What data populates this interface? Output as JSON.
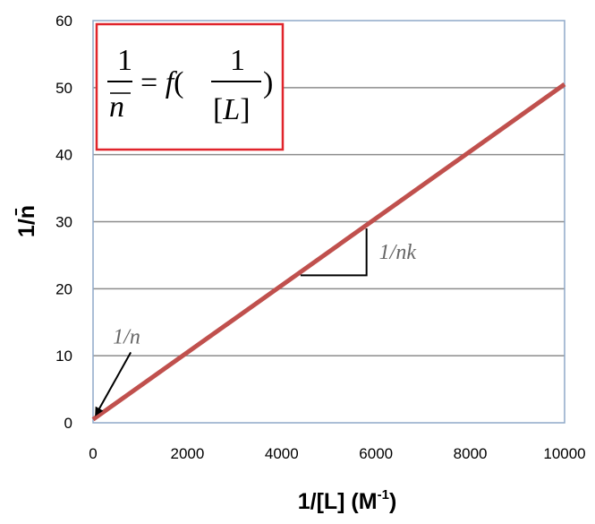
{
  "chart_data": {
    "type": "line",
    "xlabel": "1/[L]  (M",
    "xlabel_sup": "-1",
    "xlabel_end": ")",
    "ylabel": "1/n̄",
    "xlim": [
      0,
      10000
    ],
    "ylim": [
      0,
      60
    ],
    "x_ticks": [
      "0",
      "2000",
      "4000",
      "6000",
      "8000",
      "10000"
    ],
    "y_ticks": [
      "0",
      "10",
      "20",
      "30",
      "40",
      "50",
      "60"
    ],
    "x_tick_values": [
      0,
      2000,
      4000,
      6000,
      8000,
      10000
    ],
    "y_tick_values": [
      0,
      10,
      20,
      30,
      40,
      50,
      60
    ],
    "grid": "horizontal",
    "series": [
      {
        "x": [
          0,
          10000
        ],
        "y": [
          0.5,
          50.5
        ],
        "color": "#c0504d"
      }
    ],
    "annotations": {
      "intercept_label": "1/n",
      "slope_label": "1/nk",
      "slope_triangle": {
        "x1": 4400,
        "x2": 5800,
        "y_low": 22,
        "y_high": 29
      },
      "intercept_arrow_from": [
        800,
        10.5
      ],
      "intercept_arrow_to": [
        60,
        1.2
      ]
    },
    "equation": {
      "lhs_numerator": "1",
      "lhs_denominator": "n",
      "equals_f": "= f(",
      "rhs_numerator": "1",
      "rhs_denominator": "[L]",
      "close": ")",
      "border_color": "#e0242b"
    },
    "colors": {
      "line": "#c0504d",
      "plot_border": "#8fa8c8",
      "grid": "#8c8c8c"
    }
  }
}
